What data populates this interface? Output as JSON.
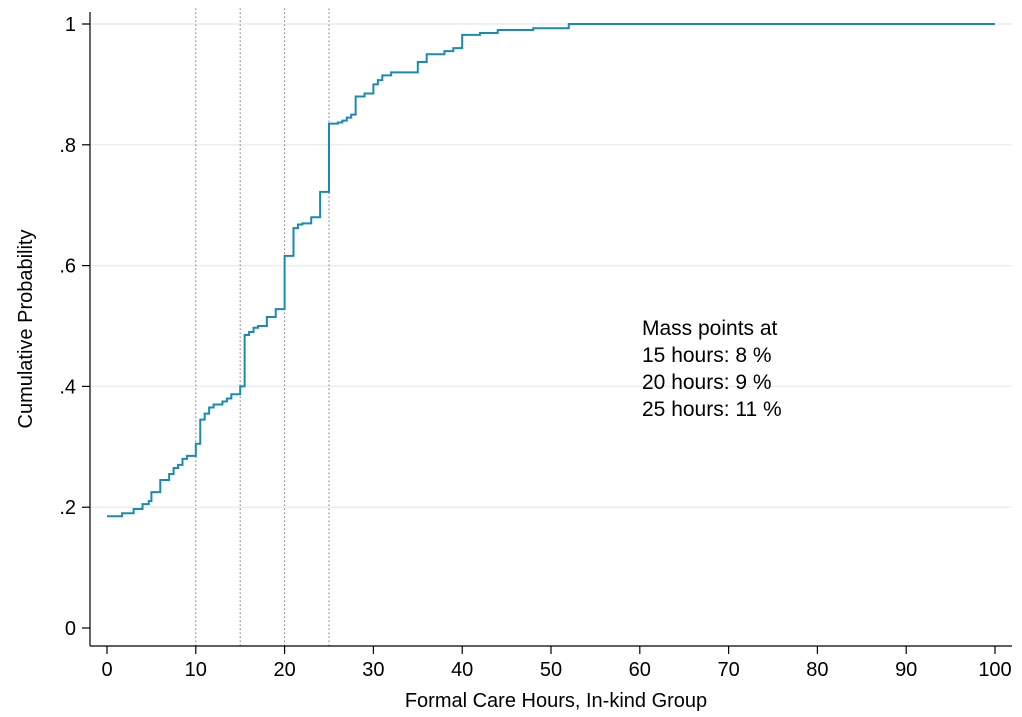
{
  "chart_data": {
    "type": "line",
    "title": "",
    "xlabel": "Formal Care Hours, In-kind Group",
    "ylabel": "Cumulative Probability",
    "xlim": [
      0,
      100
    ],
    "ylim": [
      0,
      1
    ],
    "x_ticks": [
      0,
      10,
      20,
      30,
      40,
      50,
      60,
      70,
      80,
      90,
      100
    ],
    "y_ticks": [
      {
        "value": 0,
        "label": "0"
      },
      {
        "value": 0.2,
        "label": ".2"
      },
      {
        "value": 0.4,
        "label": ".4"
      },
      {
        "value": 0.6,
        "label": ".6"
      },
      {
        "value": 0.8,
        "label": ".8"
      },
      {
        "value": 1,
        "label": "1"
      }
    ],
    "grid": "horizontal",
    "reference_lines_x": [
      10,
      15,
      20,
      25
    ],
    "line_color": "#1a8ab5",
    "series": [
      {
        "step": true,
        "x": [
          0,
          1.7,
          3,
          4,
          4.7,
          5,
          6,
          7,
          7.5,
          8,
          8.5,
          9,
          10,
          10.5,
          11,
          11.5,
          12,
          13,
          13.5,
          14,
          15,
          15.5,
          16,
          16.5,
          17,
          18,
          19,
          20,
          21,
          21.5,
          22,
          23,
          24,
          25,
          26,
          26.5,
          27,
          27.5,
          28,
          29,
          30,
          30.5,
          31,
          32,
          35,
          36,
          38,
          39,
          40,
          42,
          44,
          48,
          52,
          100
        ],
        "y": [
          0.185,
          0.19,
          0.197,
          0.205,
          0.21,
          0.225,
          0.245,
          0.255,
          0.265,
          0.27,
          0.28,
          0.285,
          0.305,
          0.345,
          0.355,
          0.365,
          0.37,
          0.375,
          0.38,
          0.387,
          0.4,
          0.485,
          0.49,
          0.497,
          0.5,
          0.515,
          0.528,
          0.616,
          0.662,
          0.668,
          0.67,
          0.68,
          0.722,
          0.835,
          0.837,
          0.84,
          0.845,
          0.85,
          0.88,
          0.885,
          0.9,
          0.907,
          0.915,
          0.92,
          0.937,
          0.95,
          0.955,
          0.96,
          0.982,
          0.985,
          0.99,
          0.993,
          1.0,
          1.0
        ]
      }
    ],
    "annotation": {
      "lines": [
        "Mass points at",
        "15 hours: 8 %",
        "20 hours: 9 %",
        "25 hours: 11 %"
      ]
    }
  }
}
